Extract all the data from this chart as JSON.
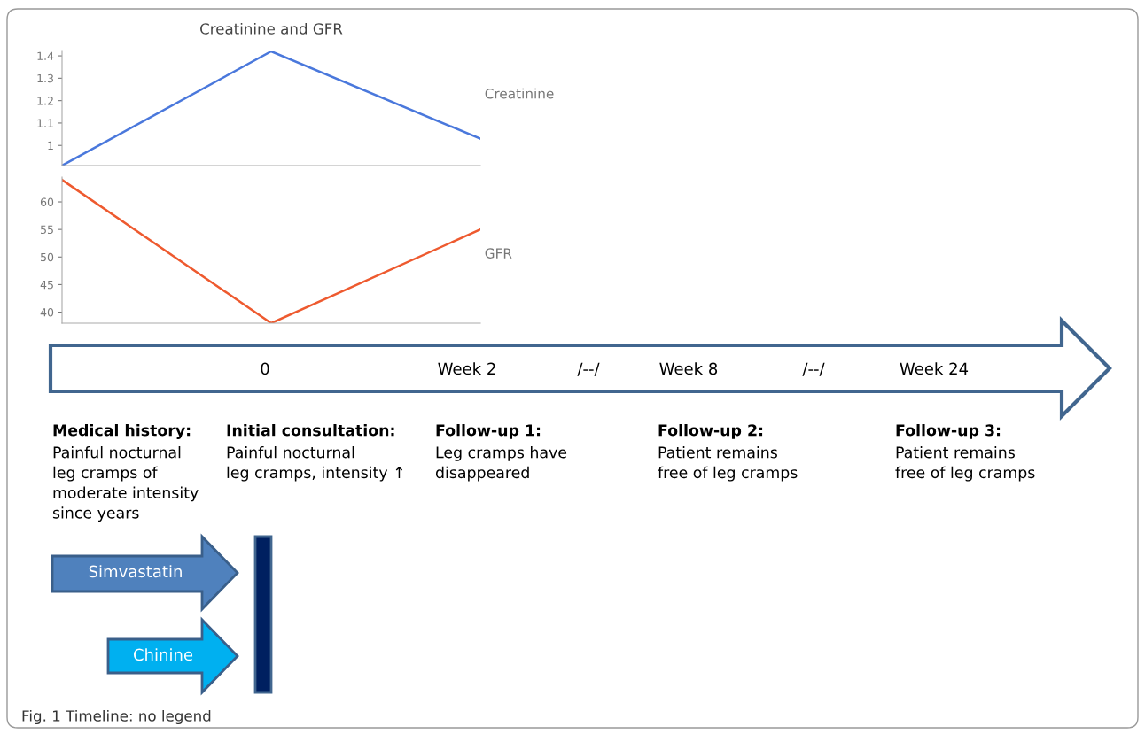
{
  "chart_data": [
    {
      "type": "line",
      "title": "Creatinine and GFR",
      "categories": [
        null,
        null,
        null
      ],
      "series": [
        {
          "name": "Creatinine",
          "color": "#4a78dc",
          "values": [
            0.91,
            1.42,
            1.03
          ]
        }
      ],
      "ylim": [
        0.91,
        1.42
      ],
      "yticks": [
        1,
        1.1,
        1.2,
        1.3,
        1.4
      ],
      "tick_labels": "y",
      "grid": false
    },
    {
      "type": "line",
      "categories": [
        null,
        null,
        null
      ],
      "series": [
        {
          "name": "GFR",
          "color": "#ee5a2f",
          "values": [
            64,
            38,
            55
          ]
        }
      ],
      "ylim": [
        38,
        64.5
      ],
      "yticks": [
        40,
        45,
        50,
        55,
        60
      ],
      "tick_labels": "y",
      "grid": false
    },
    {
      "type": "other",
      "annotations": [
        "0",
        "Week 2",
        "/--/",
        "Week 8",
        "/--/",
        "Week 24",
        "Medical history:",
        "Painful nocturnal\nleg cramps of\nmoderate intensity\nsince years",
        "Initial consultation:",
        "Painful nocturnal\nleg cramps, intensity ↑",
        "Follow-up 1:",
        "Leg cramps have\ndisappeared",
        "Follow-up 2:",
        "Patient remains\nfree of leg cramps",
        "Follow-up 3:",
        "Patient remains\nfree of leg cramps",
        "Simvastatin",
        "Chinine",
        "Fig. 1 Timeline: no legend"
      ]
    }
  ]
}
